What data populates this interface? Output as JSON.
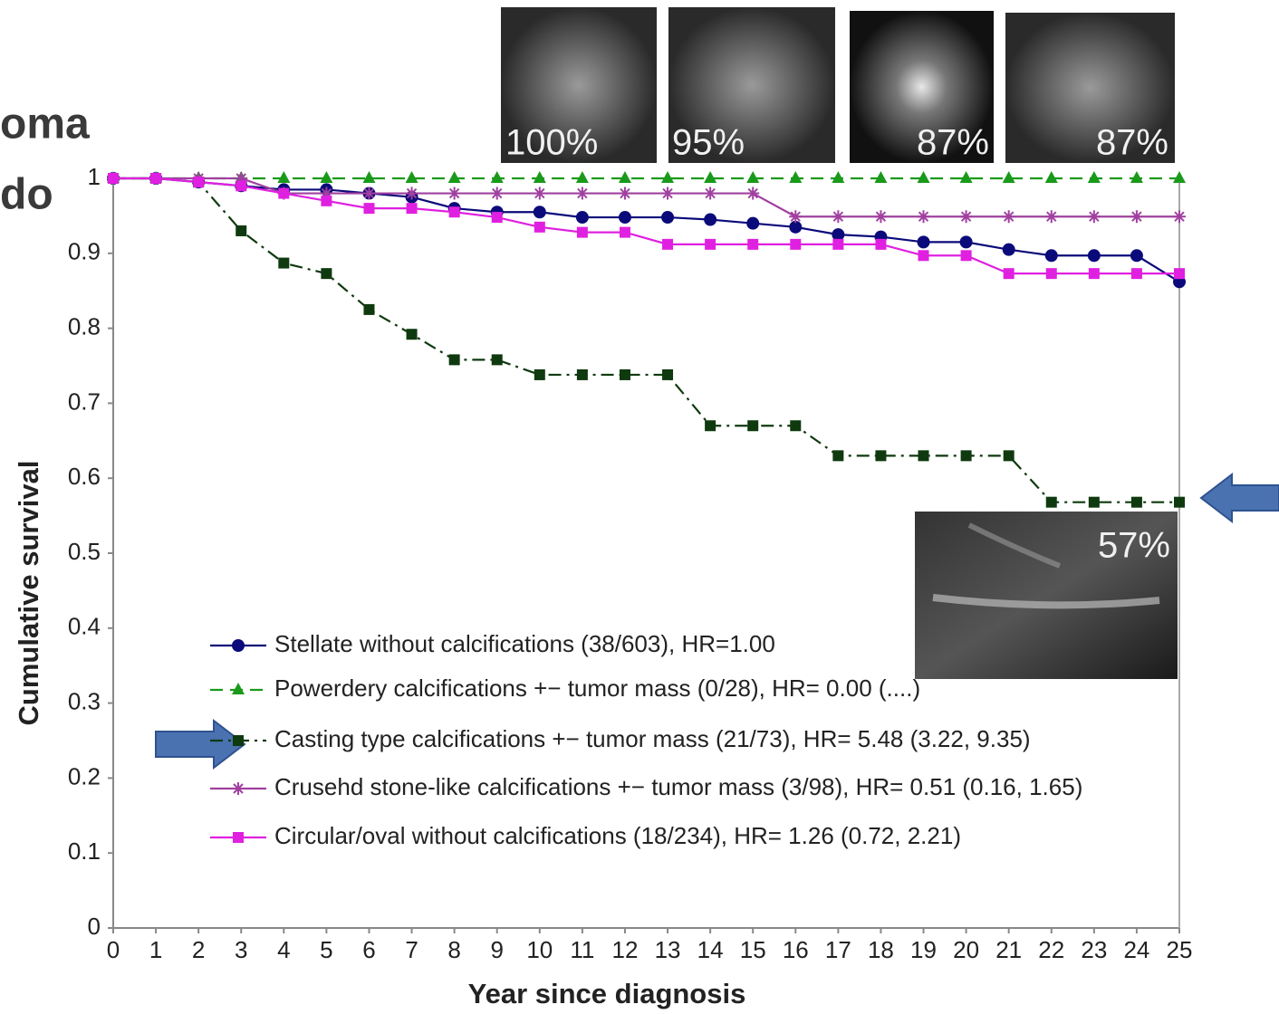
{
  "chart_data": {
    "type": "line",
    "cropped_title_lines": [
      "oma",
      "do"
    ],
    "image_labels": [
      "100%",
      "95%",
      "87%",
      "87%",
      "57%"
    ],
    "x_label": "Year since diagnosis",
    "y_label": "Cumulative survival",
    "x": [
      0,
      1,
      2,
      3,
      4,
      5,
      6,
      7,
      8,
      9,
      10,
      11,
      12,
      13,
      14,
      15,
      16,
      17,
      18,
      19,
      20,
      21,
      22,
      23,
      24,
      25
    ],
    "xlim": [
      0,
      25
    ],
    "xticks": [
      0,
      1,
      2,
      3,
      4,
      5,
      6,
      7,
      8,
      9,
      10,
      11,
      12,
      13,
      14,
      15,
      16,
      17,
      18,
      19,
      20,
      21,
      22,
      23,
      24,
      25
    ],
    "ylim": [
      0,
      1
    ],
    "yticks": [
      0,
      0.1,
      0.2,
      0.3,
      0.4,
      0.5,
      0.6,
      0.7,
      0.8,
      0.9,
      1
    ],
    "grid": false,
    "series": [
      {
        "name": "Stellate without calcifications (38/603), HR=1.00",
        "color": "#0a0a7a",
        "marker": "circle",
        "dash": "solid",
        "values": [
          1,
          1,
          0.995,
          0.99,
          0.985,
          0.985,
          0.98,
          0.975,
          0.96,
          0.955,
          0.955,
          0.948,
          0.948,
          0.948,
          0.945,
          0.94,
          0.935,
          0.925,
          0.922,
          0.915,
          0.915,
          0.905,
          0.897,
          0.897,
          0.897,
          0.862
        ]
      },
      {
        "name": "Powerdery calcifications +− tumor mass (0/28), HR= 0.00 (....)",
        "color": "#1a9a1a",
        "marker": "triangle",
        "dash": "dashed",
        "values": [
          1,
          1,
          1,
          1,
          1,
          1,
          1,
          1,
          1,
          1,
          1,
          1,
          1,
          1,
          1,
          1,
          1,
          1,
          1,
          1,
          1,
          1,
          1,
          1,
          1,
          1
        ]
      },
      {
        "name": "Casting type calcifications +− tumor mass (21/73), HR= 5.48 (3.22, 9.35)",
        "color": "#0f3a0f",
        "marker": "square",
        "dash": "dashdot",
        "values": [
          1,
          1,
          0.995,
          0.93,
          0.887,
          0.873,
          0.825,
          0.792,
          0.758,
          0.758,
          0.738,
          0.738,
          0.738,
          0.738,
          0.67,
          0.67,
          0.67,
          0.63,
          0.63,
          0.63,
          0.63,
          0.63,
          0.568,
          0.568,
          0.568,
          0.568
        ]
      },
      {
        "name": "Crusehd stone-like calcifications +− tumor mass (3/98), HR= 0.51 (0.16, 1.65)",
        "color": "#a040a0",
        "marker": "asterisk",
        "dash": "solid",
        "values": [
          1,
          1,
          1,
          1,
          0.98,
          0.98,
          0.98,
          0.98,
          0.98,
          0.98,
          0.98,
          0.98,
          0.98,
          0.98,
          0.98,
          0.98,
          0.949,
          0.949,
          0.949,
          0.949,
          0.949,
          0.949,
          0.949,
          0.949,
          0.949,
          0.949
        ]
      },
      {
        "name": "Circular/oval without calcifications (18/234), HR= 1.26 (0.72, 2.21)",
        "color": "#e020e0",
        "marker": "square",
        "dash": "solid",
        "values": [
          1,
          1,
          0.995,
          0.99,
          0.98,
          0.97,
          0.96,
          0.96,
          0.955,
          0.948,
          0.935,
          0.928,
          0.928,
          0.912,
          0.912,
          0.912,
          0.912,
          0.912,
          0.912,
          0.897,
          0.897,
          0.873,
          0.873,
          0.873,
          0.873,
          0.873
        ]
      }
    ]
  }
}
